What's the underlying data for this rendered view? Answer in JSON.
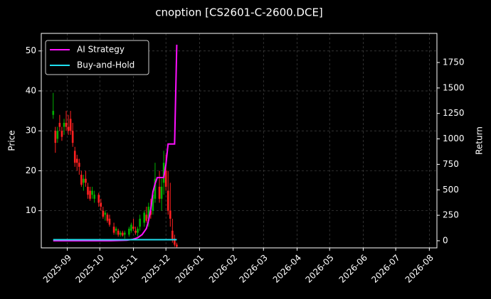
{
  "chart_data": {
    "type": "candlestick",
    "title": "cnoption [CS2601-C-2600.DCE]",
    "ylabel": "Price",
    "y2label": "Return",
    "xlim": [
      -24,
      341
    ],
    "xticks": [
      {
        "value": 0,
        "label": "2025-09"
      },
      {
        "value": 30,
        "label": "2025-10"
      },
      {
        "value": 61,
        "label": "2025-11"
      },
      {
        "value": 91,
        "label": "2025-12"
      },
      {
        "value": 122,
        "label": "2026-01"
      },
      {
        "value": 153,
        "label": "2026-02"
      },
      {
        "value": 181,
        "label": "2026-03"
      },
      {
        "value": 212,
        "label": "2026-04"
      },
      {
        "value": 242,
        "label": "2026-05"
      },
      {
        "value": 273,
        "label": "2026-06"
      },
      {
        "value": 303,
        "label": "2026-07"
      },
      {
        "value": 334,
        "label": "2026-08"
      }
    ],
    "ylim": [
      0.7,
      54.4
    ],
    "yticks": [
      10,
      20,
      30,
      40,
      50
    ],
    "y2lim": [
      -70,
      2036
    ],
    "y2ticks": [
      0,
      250,
      500,
      750,
      1000,
      1250,
      1500,
      1750
    ],
    "grid": true,
    "legend": "upper left",
    "up_color": "#00b000",
    "down_color": "#ff2020",
    "candles": {
      "x": [
        -13,
        -11,
        -9,
        -7,
        -5,
        -3,
        -1,
        1,
        3,
        5,
        7,
        9,
        11,
        13,
        15,
        17,
        19,
        21,
        23,
        25,
        29,
        31,
        33,
        35,
        37,
        39,
        43,
        45,
        47,
        49,
        51,
        53,
        57,
        59,
        61,
        63,
        65,
        67,
        71,
        73,
        75,
        77,
        79,
        81,
        85,
        87,
        89,
        91,
        93,
        95,
        97,
        99,
        101
      ],
      "open": [
        34,
        30,
        28,
        32,
        30,
        31,
        32,
        31,
        33,
        30,
        25,
        23,
        22,
        19,
        17,
        18,
        16,
        15,
        14,
        13,
        14,
        12,
        10,
        9,
        9,
        8,
        6,
        5,
        5,
        4,
        4.5,
        4,
        4,
        5,
        6,
        5,
        4.5,
        6,
        7,
        9,
        8,
        10,
        10,
        13,
        16,
        13,
        17,
        20,
        15,
        10,
        5,
        3,
        1.5
      ],
      "high": [
        39.5,
        31,
        31,
        34,
        31,
        33,
        35,
        34,
        35,
        32,
        26,
        24,
        23,
        20,
        19,
        20,
        17,
        16,
        16,
        15,
        14.5,
        13,
        11,
        10,
        9.5,
        9,
        7,
        6,
        5.5,
        5,
        5,
        5,
        6,
        7,
        8,
        6,
        6,
        9,
        10,
        11,
        12,
        13,
        15,
        22,
        20,
        18,
        25,
        24,
        20,
        17,
        8,
        4,
        2
      ],
      "low": [
        33,
        24.5,
        27,
        30,
        27.5,
        29,
        30,
        29,
        29,
        26,
        21,
        20,
        19,
        16,
        15,
        16,
        13,
        12.5,
        13,
        12,
        11,
        10,
        8,
        7.5,
        7,
        6,
        4,
        4,
        3.5,
        3.5,
        3.5,
        3,
        3.5,
        4.5,
        5,
        4,
        3.5,
        5,
        6,
        7,
        6,
        8,
        9,
        12,
        12,
        10,
        14,
        15,
        9,
        6,
        2,
        1,
        0.8
      ],
      "close": [
        35,
        27,
        30,
        31,
        28.5,
        32,
        31,
        30,
        30,
        27,
        22,
        22,
        21,
        16.5,
        18,
        17,
        14,
        13,
        15,
        14,
        12,
        11,
        8.5,
        9.5,
        7.5,
        6.5,
        4.5,
        5.5,
        4,
        4.5,
        3.8,
        4.5,
        5.5,
        6.5,
        5.5,
        4.5,
        5.5,
        8,
        9.5,
        7.5,
        11,
        9,
        14,
        18,
        13,
        16,
        22,
        16,
        10,
        8,
        3,
        1.5,
        1
      ]
    },
    "series": [
      {
        "name": "AI Strategy",
        "color": "#ff10ff",
        "axis": "y2",
        "x": [
          -13,
          0,
          20,
          40,
          55,
          61,
          65,
          69,
          73,
          75,
          77,
          79,
          81,
          83,
          85,
          87,
          89,
          91,
          93,
          95,
          97,
          99,
          101
        ],
        "values": [
          0,
          0,
          0,
          0,
          5,
          15,
          30,
          60,
          120,
          200,
          310,
          480,
          560,
          620,
          620,
          620,
          620,
          750,
          950,
          950,
          950,
          950,
          1925
        ]
      },
      {
        "name": "Buy-and-Hold",
        "color": "#20e0f0",
        "axis": "y2",
        "x": [
          -13,
          0,
          20,
          40,
          55,
          61,
          65,
          69,
          73,
          75,
          77,
          79,
          81,
          83,
          85,
          87,
          89,
          91,
          93,
          95,
          97,
          99,
          101
        ],
        "values": [
          10,
          10,
          10,
          10,
          10,
          10,
          10,
          10,
          10,
          10,
          10,
          10,
          10,
          10,
          10,
          10,
          10,
          10,
          10,
          10,
          10,
          10,
          10
        ]
      }
    ]
  }
}
